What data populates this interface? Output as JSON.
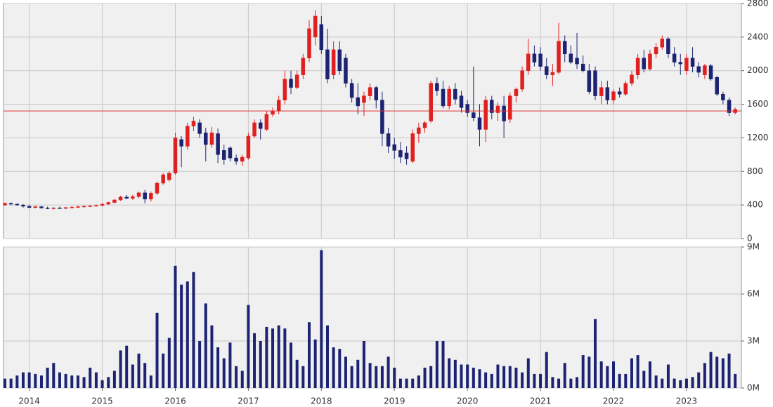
{
  "chart_data": [
    {
      "type": "candlestick",
      "up_color": "#e02020",
      "down_color": "#1c2372",
      "reference_line": 1520,
      "reference_color": "#e03030",
      "grid": true,
      "ylim": [
        0,
        2800
      ],
      "yticks": [
        0,
        400,
        800,
        1200,
        1600,
        2000,
        2400,
        2800
      ],
      "ohlc": [
        [
          400,
          430,
          390,
          420
        ],
        [
          420,
          430,
          395,
          410
        ],
        [
          410,
          420,
          390,
          400
        ],
        [
          400,
          410,
          370,
          385
        ],
        [
          385,
          400,
          360,
          370
        ],
        [
          370,
          390,
          360,
          380
        ],
        [
          380,
          390,
          355,
          365
        ],
        [
          365,
          380,
          350,
          360
        ],
        [
          360,
          375,
          345,
          365
        ],
        [
          365,
          380,
          355,
          360
        ],
        [
          360,
          375,
          350,
          370
        ],
        [
          370,
          385,
          360,
          375
        ],
        [
          375,
          390,
          365,
          380
        ],
        [
          380,
          395,
          370,
          385
        ],
        [
          385,
          400,
          375,
          390
        ],
        [
          390,
          405,
          380,
          395
        ],
        [
          395,
          420,
          385,
          410
        ],
        [
          410,
          440,
          400,
          430
        ],
        [
          430,
          470,
          420,
          460
        ],
        [
          460,
          510,
          450,
          495
        ],
        [
          495,
          520,
          470,
          480
        ],
        [
          480,
          520,
          460,
          500
        ],
        [
          500,
          560,
          480,
          545
        ],
        [
          545,
          580,
          420,
          470
        ],
        [
          470,
          560,
          440,
          540
        ],
        [
          540,
          680,
          520,
          660
        ],
        [
          660,
          780,
          640,
          760
        ],
        [
          700,
          800,
          680,
          780
        ],
        [
          780,
          1260,
          760,
          1200
        ],
        [
          1180,
          1220,
          850,
          1100
        ],
        [
          1100,
          1380,
          1060,
          1340
        ],
        [
          1340,
          1450,
          1280,
          1400
        ],
        [
          1380,
          1420,
          1200,
          1250
        ],
        [
          1260,
          1320,
          920,
          1120
        ],
        [
          1120,
          1330,
          1080,
          1260
        ],
        [
          1250,
          1310,
          900,
          1000
        ],
        [
          1050,
          1120,
          880,
          940
        ],
        [
          1080,
          1100,
          920,
          960
        ],
        [
          960,
          1000,
          880,
          920
        ],
        [
          920,
          1000,
          870,
          970
        ],
        [
          960,
          1260,
          940,
          1220
        ],
        [
          1220,
          1420,
          1200,
          1380
        ],
        [
          1380,
          1420,
          1180,
          1310
        ],
        [
          1300,
          1520,
          1280,
          1480
        ],
        [
          1480,
          1560,
          1450,
          1520
        ],
        [
          1520,
          1700,
          1480,
          1650
        ],
        [
          1650,
          2000,
          1600,
          1900
        ],
        [
          1900,
          2000,
          1720,
          1800
        ],
        [
          1800,
          2000,
          1780,
          1950
        ],
        [
          1950,
          2200,
          1900,
          2150
        ],
        [
          2150,
          2600,
          2100,
          2500
        ],
        [
          2400,
          2720,
          2300,
          2650
        ],
        [
          2550,
          2650,
          2200,
          2250
        ],
        [
          2250,
          2500,
          1850,
          1900
        ],
        [
          1950,
          2350,
          1900,
          2250
        ],
        [
          2250,
          2350,
          1950,
          2000
        ],
        [
          2150,
          2200,
          1800,
          1850
        ],
        [
          1850,
          1900,
          1620,
          1680
        ],
        [
          1680,
          1850,
          1480,
          1580
        ],
        [
          1620,
          1750,
          1460,
          1700
        ],
        [
          1700,
          1850,
          1650,
          1800
        ],
        [
          1800,
          1820,
          1550,
          1650
        ],
        [
          1650,
          1750,
          1100,
          1250
        ],
        [
          1250,
          1320,
          1020,
          1100
        ],
        [
          1120,
          1200,
          950,
          1050
        ],
        [
          1050,
          1150,
          900,
          970
        ],
        [
          1020,
          1100,
          880,
          950
        ],
        [
          920,
          1300,
          900,
          1250
        ],
        [
          1250,
          1380,
          1140,
          1320
        ],
        [
          1320,
          1400,
          1260,
          1380
        ],
        [
          1400,
          1880,
          1380,
          1850
        ],
        [
          1850,
          1920,
          1700,
          1760
        ],
        [
          1780,
          1880,
          1550,
          1580
        ],
        [
          1580,
          1820,
          1540,
          1780
        ],
        [
          1780,
          1850,
          1600,
          1660
        ],
        [
          1700,
          1760,
          1500,
          1560
        ],
        [
          1600,
          1650,
          1450,
          1500
        ],
        [
          1500,
          2050,
          1400,
          1440
        ],
        [
          1440,
          1600,
          1100,
          1300
        ],
        [
          1300,
          1700,
          1150,
          1650
        ],
        [
          1650,
          1700,
          1420,
          1500
        ],
        [
          1500,
          1620,
          1400,
          1580
        ],
        [
          1580,
          1700,
          1200,
          1400
        ],
        [
          1420,
          1740,
          1380,
          1700
        ],
        [
          1700,
          1800,
          1620,
          1780
        ],
        [
          1780,
          2050,
          1750,
          2000
        ],
        [
          2000,
          2380,
          1950,
          2200
        ],
        [
          2200,
          2300,
          2050,
          2100
        ],
        [
          2200,
          2280,
          2000,
          2050
        ],
        [
          2050,
          2150,
          1900,
          1950
        ],
        [
          1950,
          2080,
          1820,
          1980
        ],
        [
          1980,
          2570,
          1960,
          2350
        ],
        [
          2350,
          2420,
          2100,
          2200
        ],
        [
          2200,
          2300,
          2080,
          2100
        ],
        [
          2150,
          2450,
          2020,
          2080
        ],
        [
          2080,
          2180,
          1980,
          2000
        ],
        [
          2000,
          2080,
          1720,
          1750
        ],
        [
          2000,
          2050,
          1650,
          1700
        ],
        [
          1700,
          1880,
          1600,
          1800
        ],
        [
          1800,
          1880,
          1600,
          1650
        ],
        [
          1650,
          1780,
          1600,
          1750
        ],
        [
          1750,
          1800,
          1680,
          1720
        ],
        [
          1720,
          1880,
          1700,
          1850
        ],
        [
          1850,
          2000,
          1820,
          1950
        ],
        [
          1950,
          2200,
          1900,
          2150
        ],
        [
          2150,
          2250,
          1980,
          2020
        ],
        [
          2020,
          2250,
          2000,
          2200
        ],
        [
          2200,
          2330,
          2150,
          2280
        ],
        [
          2280,
          2420,
          2250,
          2380
        ],
        [
          2380,
          2400,
          2150,
          2200
        ],
        [
          2200,
          2280,
          2050,
          2100
        ],
        [
          2100,
          2200,
          1950,
          2080
        ],
        [
          2000,
          2200,
          1950,
          2150
        ],
        [
          2150,
          2280,
          1980,
          2050
        ],
        [
          2050,
          2100,
          1920,
          1980
        ],
        [
          1950,
          2080,
          1900,
          2060
        ],
        [
          2060,
          2080,
          1880,
          1900
        ],
        [
          1920,
          1940,
          1700,
          1720
        ],
        [
          1720,
          1750,
          1600,
          1650
        ],
        [
          1650,
          1680,
          1460,
          1500
        ],
        [
          1500,
          1560,
          1480,
          1540
        ]
      ]
    },
    {
      "type": "bar",
      "color": "#1c2372",
      "grid": true,
      "ylim": [
        0,
        9000000
      ],
      "yticks": [
        {
          "value": 0,
          "label": "0M"
        },
        {
          "value": 3000000,
          "label": "3M"
        },
        {
          "value": 6000000,
          "label": "6M"
        },
        {
          "value": 9000000,
          "label": "9M"
        }
      ],
      "categories": [
        null,
        null,
        null,
        null,
        "2014",
        null,
        null,
        null,
        null,
        null,
        null,
        null,
        null,
        null,
        null,
        null,
        "2015",
        null,
        null,
        null,
        null,
        null,
        null,
        null,
        null,
        null,
        null,
        null,
        "2016",
        null,
        null,
        null,
        null,
        null,
        null,
        null,
        null,
        null,
        null,
        null,
        "2017",
        null,
        null,
        null,
        null,
        null,
        null,
        null,
        null,
        null,
        null,
        null,
        "2018",
        null,
        null,
        null,
        null,
        null,
        null,
        null,
        null,
        null,
        null,
        null,
        "2019",
        null,
        null,
        null,
        null,
        null,
        null,
        null,
        null,
        null,
        null,
        null,
        "2020",
        null,
        null,
        null,
        null,
        null,
        null,
        null,
        null,
        null,
        null,
        null,
        "2021",
        null,
        null,
        null,
        null,
        null,
        null,
        null,
        null,
        null,
        null,
        null,
        "2022",
        null,
        null,
        null,
        null,
        null,
        null,
        null,
        null,
        null,
        null,
        null,
        "2023",
        null,
        null,
        null,
        null,
        null,
        null,
        null,
        null
      ],
      "values": [
        600000,
        600000,
        800000,
        1000000,
        1000000,
        900000,
        800000,
        1300000,
        1600000,
        1000000,
        900000,
        800000,
        800000,
        700000,
        1300000,
        1000000,
        500000,
        700000,
        1100000,
        2400000,
        2700000,
        1500000,
        2200000,
        1600000,
        800000,
        4800000,
        2200000,
        3200000,
        7800000,
        6600000,
        6800000,
        7400000,
        3000000,
        5400000,
        4000000,
        2600000,
        1900000,
        2900000,
        1400000,
        1100000,
        5300000,
        3500000,
        3000000,
        3900000,
        3800000,
        4000000,
        3800000,
        2900000,
        1800000,
        1400000,
        4200000,
        3100000,
        8800000,
        4000000,
        2600000,
        2500000,
        2000000,
        1400000,
        1800000,
        3000000,
        1600000,
        1400000,
        1400000,
        2000000,
        1300000,
        600000,
        600000,
        600000,
        800000,
        1300000,
        1400000,
        3000000,
        3000000,
        1900000,
        1800000,
        1500000,
        1500000,
        1300000,
        1200000,
        1000000,
        900000,
        1500000,
        1400000,
        1400000,
        1300000,
        1000000,
        1900000,
        900000,
        900000,
        2300000,
        700000,
        600000,
        1600000,
        600000,
        700000,
        2100000,
        2000000,
        4400000,
        1700000,
        1400000,
        1700000,
        900000,
        900000,
        1900000,
        2100000,
        1100000,
        1700000,
        800000,
        600000,
        1500000,
        600000,
        500000,
        600000,
        700000,
        1000000,
        1600000,
        2300000,
        2000000,
        1900000,
        2200000,
        900000
      ]
    }
  ]
}
